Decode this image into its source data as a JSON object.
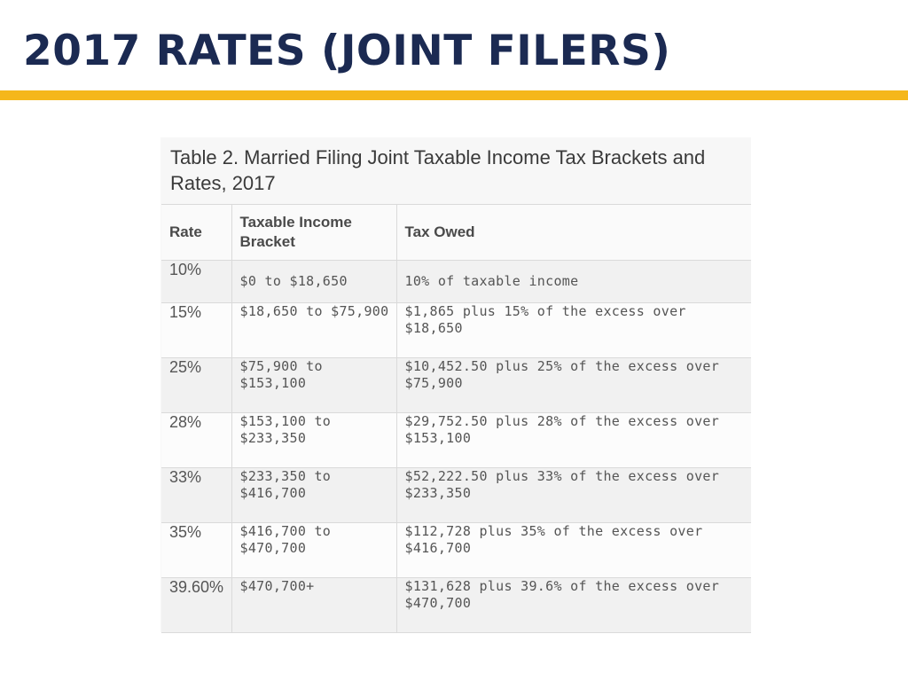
{
  "slide": {
    "title": "2017 RATES (JOINT FILERS)",
    "accent_color": "#f5b71b",
    "title_color": "#1b2a52"
  },
  "table": {
    "caption": "Table 2. Married Filing Joint Taxable Income Tax Brackets and Rates, 2017",
    "columns": [
      "Rate",
      "Taxable Income Bracket",
      "Tax Owed"
    ],
    "rows": [
      {
        "rate": "10%",
        "bracket": "$0 to $18,650",
        "owed": "10% of taxable income"
      },
      {
        "rate": "15%",
        "bracket": "$18,650 to $75,900",
        "owed": "$1,865 plus 15% of the excess over $18,650"
      },
      {
        "rate": "25%",
        "bracket": "$75,900 to $153,100",
        "owed": "$10,452.50 plus 25% of the excess over $75,900"
      },
      {
        "rate": "28%",
        "bracket": "$153,100 to $233,350",
        "owed": "$29,752.50 plus 28% of the excess over $153,100"
      },
      {
        "rate": "33%",
        "bracket": "$233,350 to $416,700",
        "owed": "$52,222.50 plus 33% of the excess over $233,350"
      },
      {
        "rate": "35%",
        "bracket": "$416,700 to $470,700",
        "owed": "$112,728 plus 35% of the excess over $416,700"
      },
      {
        "rate": "39.60%",
        "bracket": "$470,700+",
        "owed": "$131,628 plus 39.6% of the excess over $470,700"
      }
    ]
  }
}
